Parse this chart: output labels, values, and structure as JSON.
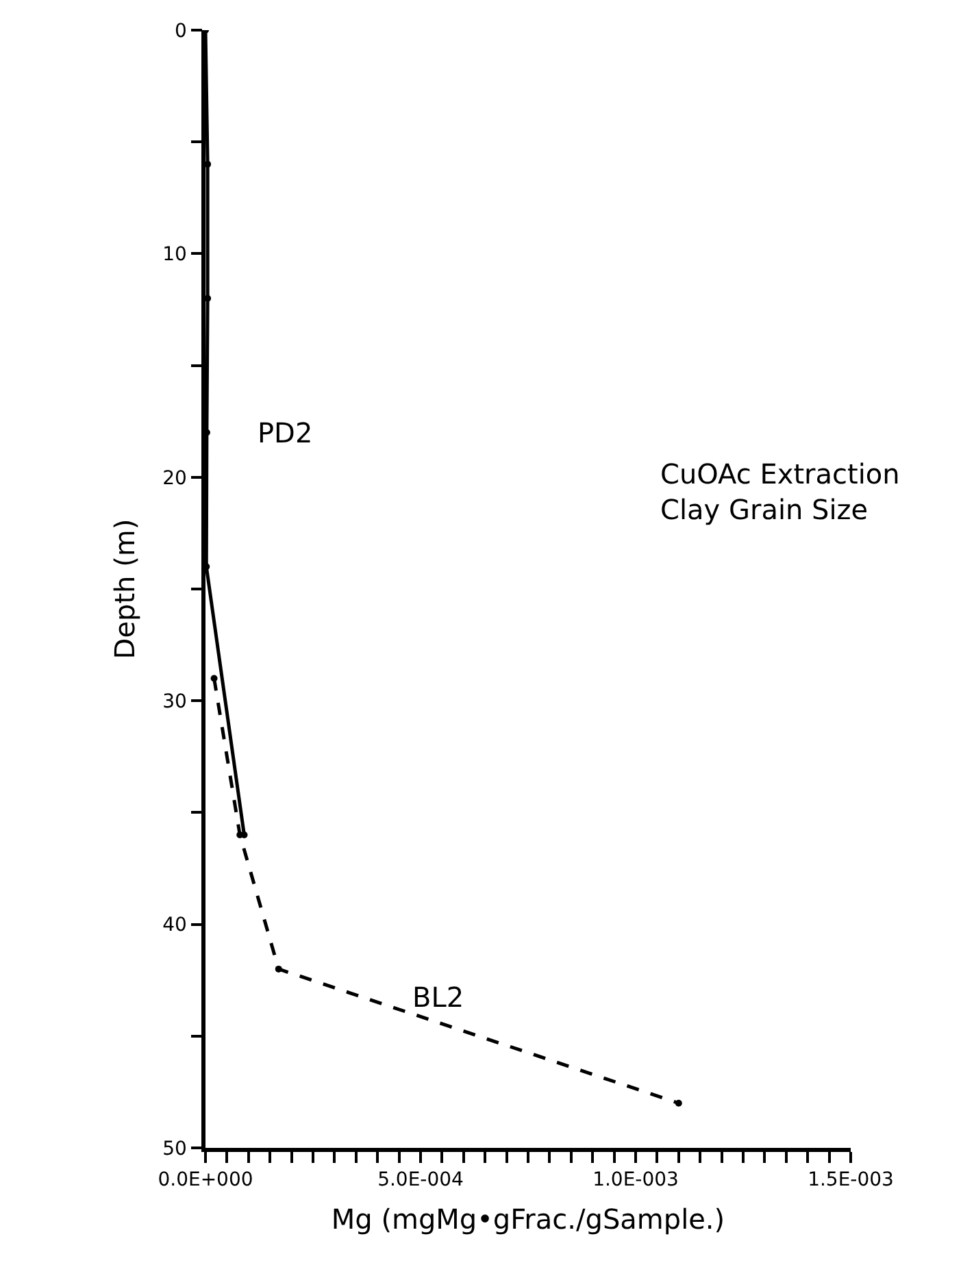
{
  "chart_data": {
    "type": "line",
    "xlabel": "Mg (mgMg•gFrac./gSample.)",
    "ylabel": "Depth (m)",
    "annotations": [
      "CuOAc Extraction\nClay Grain Size"
    ],
    "xlim": [
      0,
      0.0015
    ],
    "xticks": [
      {
        "value": 0,
        "label": "0.0E+000"
      },
      {
        "value": 5e-05,
        "label": null
      },
      {
        "value": 0.0001,
        "label": null
      },
      {
        "value": 0.00015,
        "label": null
      },
      {
        "value": 0.0002,
        "label": null
      },
      {
        "value": 0.00025,
        "label": null
      },
      {
        "value": 0.0003,
        "label": null
      },
      {
        "value": 0.00035,
        "label": null
      },
      {
        "value": 0.0004,
        "label": null
      },
      {
        "value": 0.00045,
        "label": null
      },
      {
        "value": 0.0005,
        "label": "5.0E-004"
      },
      {
        "value": 0.00055,
        "label": null
      },
      {
        "value": 0.0006,
        "label": null
      },
      {
        "value": 0.00065,
        "label": null
      },
      {
        "value": 0.0007,
        "label": null
      },
      {
        "value": 0.00075,
        "label": null
      },
      {
        "value": 0.0008,
        "label": null
      },
      {
        "value": 0.00085,
        "label": null
      },
      {
        "value": 0.0009,
        "label": null
      },
      {
        "value": 0.00095,
        "label": null
      },
      {
        "value": 0.001,
        "label": "1.0E-003"
      },
      {
        "value": 0.00105,
        "label": null
      },
      {
        "value": 0.0011,
        "label": null
      },
      {
        "value": 0.00115,
        "label": null
      },
      {
        "value": 0.0012,
        "label": null
      },
      {
        "value": 0.00125,
        "label": null
      },
      {
        "value": 0.0013,
        "label": null
      },
      {
        "value": 0.00135,
        "label": null
      },
      {
        "value": 0.0014,
        "label": null
      },
      {
        "value": 0.00145,
        "label": null
      },
      {
        "value": 0.0015,
        "label": "1.5E-003"
      }
    ],
    "ylim": [
      50,
      0
    ],
    "yticks": [
      0,
      {
        "value": 5,
        "label": null
      },
      10,
      {
        "value": 15,
        "label": null
      },
      20,
      {
        "value": 25,
        "label": null
      },
      30,
      {
        "value": 35,
        "label": null
      },
      40,
      {
        "value": 45,
        "label": null
      },
      50
    ],
    "legend": false,
    "marker": "circle",
    "series": [
      {
        "name": "PD2",
        "color": "#000000",
        "line_style": "solid",
        "x": [
          0,
          5e-06,
          5e-06,
          3e-06,
          2e-06,
          9e-05
        ],
        "values": [
          0,
          6,
          12,
          18,
          24,
          36
        ]
      },
      {
        "name": "BL2",
        "color": "#000000",
        "line_style": "dashed",
        "x": [
          2e-05,
          8e-05,
          0.00017,
          0.0011
        ],
        "values": [
          29,
          36,
          42,
          48
        ]
      }
    ]
  }
}
